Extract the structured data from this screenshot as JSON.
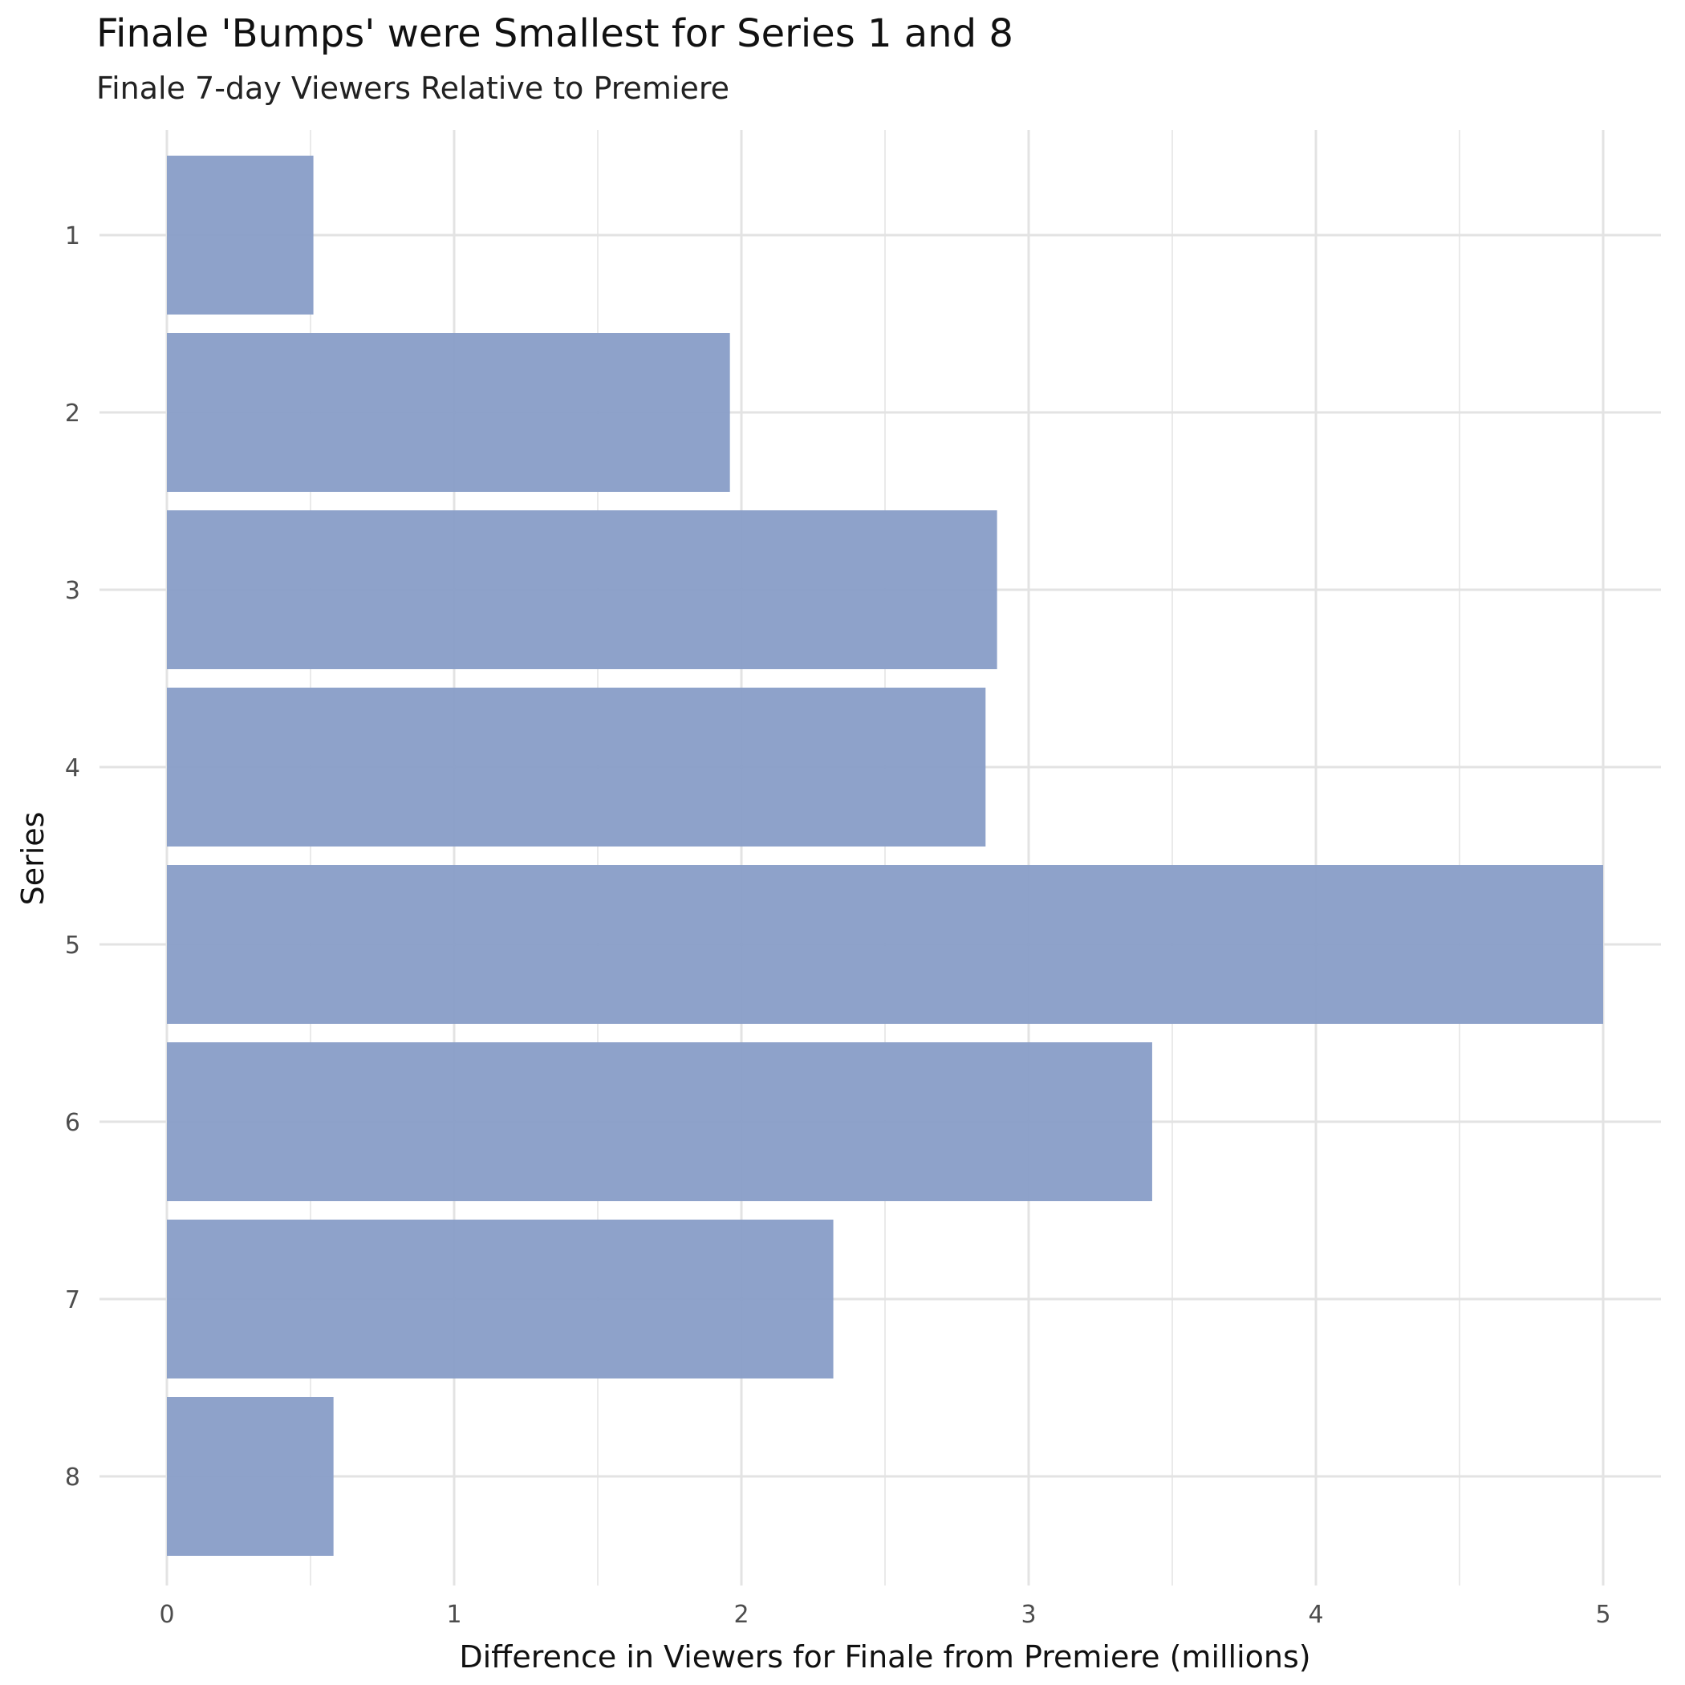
{
  "chart_data": {
    "type": "bar",
    "orientation": "horizontal",
    "title": "Finale 'Bumps' were Smallest for Series 1 and 8",
    "subtitle": "Finale 7-day Viewers Relative to Premiere",
    "xlabel": "Difference in Viewers for Finale from Premiere (millions)",
    "ylabel": "Series",
    "categories": [
      "1",
      "2",
      "3",
      "4",
      "5",
      "6",
      "7",
      "8"
    ],
    "values": [
      0.51,
      1.96,
      2.89,
      2.85,
      5.0,
      3.43,
      2.32,
      0.58
    ],
    "xlim": [
      0,
      5.13
    ],
    "x_ticks": [
      "0",
      "1",
      "2",
      "3",
      "4",
      "5"
    ],
    "grid": true,
    "bar_color": "#8a9fc8",
    "grid_color": "#e3e3e3",
    "legend": "none"
  }
}
